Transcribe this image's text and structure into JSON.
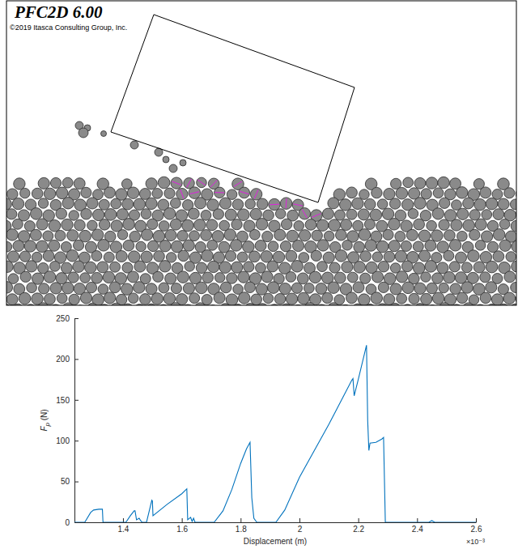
{
  "simulation": {
    "title": "PFC2D 6.00",
    "copyright": "©2019 Itasca Consulting Group, Inc."
  },
  "chart_data": {
    "type": "line",
    "xlabel": "Displacement (m)",
    "ylabel": "Fp (N)",
    "annotations": [
      {
        "text": "×10⁻³"
      }
    ],
    "color": "#0072bd",
    "x": [
      1.235,
      1.27,
      1.29,
      1.3,
      1.318,
      1.33,
      1.332,
      1.34,
      1.41,
      1.425,
      1.438,
      1.441,
      1.446,
      1.455,
      1.46,
      1.465,
      1.48,
      1.49,
      1.498,
      1.5,
      1.502,
      1.55,
      1.6,
      1.617,
      1.62,
      1.63,
      1.635,
      1.64,
      1.645,
      1.66,
      1.71,
      1.74,
      1.77,
      1.8,
      1.82,
      1.832,
      1.838,
      1.845,
      1.855,
      1.92,
      1.95,
      2.0,
      2.1,
      2.178,
      2.182,
      2.186,
      2.2,
      2.228,
      2.232,
      2.236,
      2.24,
      2.26,
      2.28,
      2.286,
      2.292,
      2.44,
      2.45,
      2.46,
      2.6
    ],
    "values": [
      0,
      0,
      12,
      15,
      16,
      16,
      0,
      0,
      0,
      8,
      14,
      14,
      3,
      5,
      2,
      0,
      0,
      15,
      27,
      26,
      8,
      22,
      35,
      41,
      3,
      6,
      1,
      5,
      0,
      0,
      0,
      14,
      40,
      72,
      90,
      98,
      30,
      5,
      0,
      0,
      15,
      55,
      120,
      174,
      176,
      155,
      175,
      217,
      125,
      88,
      97,
      98,
      102,
      104,
      0,
      0,
      2,
      0,
      0
    ],
    "xlim": [
      1.235,
      2.6
    ],
    "xticks": [
      1.4,
      1.6,
      1.8,
      2,
      2.2,
      2.4,
      2.6
    ],
    "ylim": [
      0,
      250
    ],
    "yticks": [
      0,
      50,
      100,
      150,
      200,
      250
    ]
  }
}
